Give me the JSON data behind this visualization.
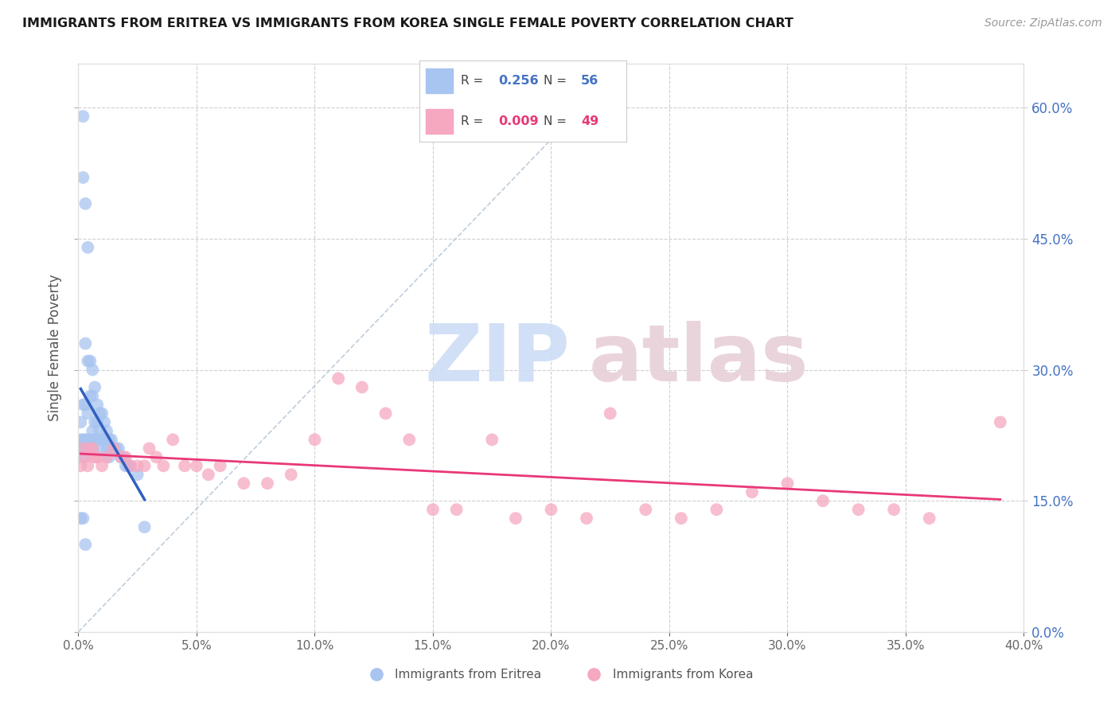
{
  "title": "IMMIGRANTS FROM ERITREA VS IMMIGRANTS FROM KOREA SINGLE FEMALE POVERTY CORRELATION CHART",
  "source": "Source: ZipAtlas.com",
  "ylabel": "Single Female Poverty",
  "legend_labels": [
    "Immigrants from Eritrea",
    "Immigrants from Korea"
  ],
  "R_eritrea": "0.256",
  "N_eritrea": "56",
  "R_korea": "0.009",
  "N_korea": "49",
  "xlim": [
    0.0,
    0.4
  ],
  "ylim": [
    0.0,
    0.65
  ],
  "yticks": [
    0.0,
    0.15,
    0.3,
    0.45,
    0.6
  ],
  "xticks": [
    0.0,
    0.05,
    0.1,
    0.15,
    0.2,
    0.25,
    0.3,
    0.35,
    0.4
  ],
  "color_eritrea": "#a8c4f0",
  "color_korea": "#f5a8c0",
  "color_line_eritrea": "#3060c0",
  "color_line_korea": "#e83878",
  "color_right_axis": "#4472c4",
  "eritrea_x": [
    0.001,
    0.001,
    0.001,
    0.002,
    0.002,
    0.002,
    0.002,
    0.002,
    0.002,
    0.003,
    0.003,
    0.003,
    0.003,
    0.003,
    0.004,
    0.004,
    0.004,
    0.004,
    0.005,
    0.005,
    0.005,
    0.006,
    0.006,
    0.006,
    0.006,
    0.007,
    0.007,
    0.007,
    0.008,
    0.008,
    0.008,
    0.009,
    0.009,
    0.01,
    0.01,
    0.01,
    0.011,
    0.011,
    0.012,
    0.012,
    0.013,
    0.013,
    0.014,
    0.015,
    0.016,
    0.017,
    0.018,
    0.019,
    0.02,
    0.021,
    0.022,
    0.025,
    0.028,
    0.001,
    0.002,
    0.003
  ],
  "eritrea_y": [
    0.24,
    0.22,
    0.21,
    0.59,
    0.52,
    0.26,
    0.22,
    0.21,
    0.2,
    0.49,
    0.33,
    0.26,
    0.22,
    0.21,
    0.44,
    0.31,
    0.25,
    0.22,
    0.31,
    0.27,
    0.22,
    0.3,
    0.27,
    0.23,
    0.21,
    0.28,
    0.24,
    0.22,
    0.26,
    0.24,
    0.22,
    0.25,
    0.23,
    0.25,
    0.22,
    0.21,
    0.24,
    0.22,
    0.23,
    0.21,
    0.22,
    0.2,
    0.22,
    0.21,
    0.21,
    0.21,
    0.2,
    0.2,
    0.19,
    0.19,
    0.19,
    0.18,
    0.12,
    0.13,
    0.13,
    0.1
  ],
  "korea_x": [
    0.001,
    0.002,
    0.003,
    0.004,
    0.005,
    0.006,
    0.007,
    0.008,
    0.01,
    0.012,
    0.015,
    0.018,
    0.02,
    0.022,
    0.025,
    0.028,
    0.03,
    0.033,
    0.036,
    0.04,
    0.045,
    0.05,
    0.055,
    0.06,
    0.07,
    0.08,
    0.09,
    0.1,
    0.11,
    0.12,
    0.13,
    0.14,
    0.15,
    0.16,
    0.175,
    0.185,
    0.2,
    0.215,
    0.225,
    0.24,
    0.255,
    0.27,
    0.285,
    0.3,
    0.315,
    0.33,
    0.345,
    0.36,
    0.39
  ],
  "korea_y": [
    0.19,
    0.21,
    0.2,
    0.19,
    0.21,
    0.21,
    0.2,
    0.2,
    0.19,
    0.2,
    0.21,
    0.2,
    0.2,
    0.19,
    0.19,
    0.19,
    0.21,
    0.2,
    0.19,
    0.22,
    0.19,
    0.19,
    0.18,
    0.19,
    0.17,
    0.17,
    0.18,
    0.22,
    0.29,
    0.28,
    0.25,
    0.22,
    0.14,
    0.14,
    0.22,
    0.13,
    0.14,
    0.13,
    0.25,
    0.14,
    0.13,
    0.14,
    0.16,
    0.17,
    0.15,
    0.14,
    0.14,
    0.13,
    0.24
  ]
}
